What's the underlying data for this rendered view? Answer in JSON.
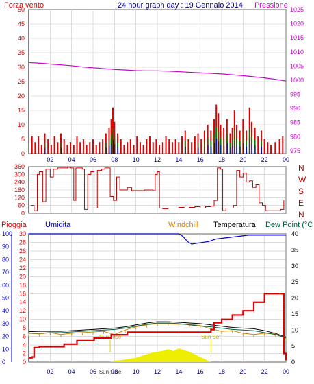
{
  "title": "24 hour graph day : 19 Gennaio 2014",
  "colors": {
    "wind": "#e00000",
    "gust": "#e00000",
    "pressure": "#cc00cc",
    "direction": "#c00000",
    "rain": "#dd0000",
    "humidity": "#0000cc",
    "windchill": "#d08000",
    "temperature": "#000000",
    "dewpoint": "#006040",
    "solar": "#eeee00",
    "grid": "#c8c8c8",
    "axis": "#000080"
  },
  "chart_data": [
    {
      "type": "bar",
      "name": "wind-pressure",
      "series_labels": {
        "wind": "Forza vento",
        "pressure": "Pressione"
      },
      "x_ticks": [
        "02",
        "04",
        "06",
        "08",
        "10",
        "12",
        "14",
        "16",
        "18",
        "20",
        "22",
        "00"
      ],
      "x_tick_hours": [
        2,
        4,
        6,
        8,
        10,
        12,
        14,
        16,
        18,
        20,
        22,
        24
      ],
      "y_left": {
        "ticks": [
          0,
          5,
          10,
          15,
          20,
          25,
          30,
          35,
          40,
          45,
          50
        ],
        "range": [
          0,
          50
        ]
      },
      "y_right": {
        "ticks": [
          975,
          980,
          985,
          990,
          995,
          1000,
          1005,
          1010,
          1015,
          1020,
          1025
        ],
        "range": [
          974,
          1025
        ]
      },
      "wind_bars": [
        [
          0.3,
          6
        ],
        [
          0.6,
          4
        ],
        [
          0.9,
          6
        ],
        [
          1.2,
          3
        ],
        [
          1.5,
          7
        ],
        [
          1.8,
          5
        ],
        [
          2.1,
          3
        ],
        [
          2.4,
          6
        ],
        [
          2.7,
          4
        ],
        [
          3.0,
          7
        ],
        [
          3.3,
          5
        ],
        [
          3.6,
          3
        ],
        [
          3.9,
          4
        ],
        [
          4.2,
          3
        ],
        [
          4.5,
          6
        ],
        [
          4.8,
          4
        ],
        [
          5.1,
          5
        ],
        [
          5.4,
          3
        ],
        [
          5.7,
          4
        ],
        [
          6.0,
          5
        ],
        [
          6.3,
          3
        ],
        [
          6.6,
          4
        ],
        [
          6.9,
          5
        ],
        [
          7.2,
          7
        ],
        [
          7.5,
          9
        ],
        [
          7.7,
          12
        ],
        [
          7.85,
          16
        ],
        [
          8.0,
          11
        ],
        [
          8.3,
          7
        ],
        [
          8.6,
          5
        ],
        [
          8.9,
          3
        ],
        [
          9.2,
          4
        ],
        [
          9.5,
          5
        ],
        [
          9.8,
          3
        ],
        [
          10.1,
          6
        ],
        [
          10.4,
          4
        ],
        [
          10.7,
          3
        ],
        [
          11.0,
          5
        ],
        [
          11.3,
          6
        ],
        [
          11.6,
          4
        ],
        [
          11.9,
          5
        ],
        [
          12.2,
          3
        ],
        [
          12.5,
          4
        ],
        [
          12.8,
          6
        ],
        [
          13.1,
          5
        ],
        [
          13.4,
          4
        ],
        [
          13.7,
          5
        ],
        [
          14.0,
          4
        ],
        [
          14.3,
          6
        ],
        [
          14.6,
          8
        ],
        [
          14.9,
          5
        ],
        [
          15.2,
          4
        ],
        [
          15.5,
          6
        ],
        [
          15.8,
          7
        ],
        [
          16.1,
          5
        ],
        [
          16.4,
          8
        ],
        [
          16.7,
          10
        ],
        [
          17.0,
          8
        ],
        [
          17.3,
          12
        ],
        [
          17.5,
          17
        ],
        [
          17.7,
          14
        ],
        [
          17.9,
          10
        ],
        [
          18.2,
          9
        ],
        [
          18.5,
          12
        ],
        [
          18.8,
          7
        ],
        [
          19.0,
          9
        ],
        [
          19.2,
          15
        ],
        [
          19.4,
          10
        ],
        [
          19.7,
          8
        ],
        [
          20.0,
          12
        ],
        [
          20.3,
          8
        ],
        [
          20.6,
          16
        ],
        [
          20.8,
          11
        ],
        [
          21.1,
          9
        ],
        [
          21.4,
          6
        ],
        [
          21.7,
          8
        ],
        [
          22.0,
          5
        ],
        [
          22.3,
          4
        ],
        [
          22.6,
          3
        ],
        [
          23.0,
          4
        ],
        [
          23.4,
          5
        ],
        [
          23.7,
          6
        ]
      ],
      "pressure_points": [
        [
          0,
          1006.2
        ],
        [
          1,
          1006
        ],
        [
          2,
          1005.7
        ],
        [
          3,
          1005.4
        ],
        [
          4,
          1005.1
        ],
        [
          5,
          1004.7
        ],
        [
          6,
          1004.4
        ],
        [
          7,
          1004.1
        ],
        [
          8,
          1003.8
        ],
        [
          9,
          1003.6
        ],
        [
          10,
          1003.4
        ],
        [
          11,
          1003.3
        ],
        [
          12,
          1003.3
        ],
        [
          13,
          1003.2
        ],
        [
          14,
          1003.0
        ],
        [
          15,
          1002.8
        ],
        [
          16,
          1002.6
        ],
        [
          17,
          1002.4
        ],
        [
          18,
          1002.2
        ],
        [
          19,
          1001.9
        ],
        [
          20,
          1001.6
        ],
        [
          21,
          1001.2
        ],
        [
          22,
          1000.8
        ],
        [
          23,
          1000.3
        ],
        [
          24,
          999.7
        ]
      ]
    },
    {
      "type": "line",
      "name": "wind-direction",
      "y_ticks": [
        0,
        60,
        120,
        180,
        240,
        300,
        360
      ],
      "y_range": [
        0,
        360
      ],
      "compass_labels": [
        "N",
        "W",
        "S",
        "E",
        "N"
      ],
      "points": [
        [
          0.2,
          60
        ],
        [
          0.5,
          20
        ],
        [
          0.8,
          300
        ],
        [
          1.0,
          320
        ],
        [
          1.3,
          90
        ],
        [
          1.6,
          340
        ],
        [
          2.0,
          280
        ],
        [
          2.3,
          340
        ],
        [
          2.7,
          350
        ],
        [
          3.0,
          350
        ],
        [
          3.3,
          350
        ],
        [
          3.6,
          355
        ],
        [
          3.9,
          350
        ],
        [
          4.2,
          100
        ],
        [
          4.4,
          350
        ],
        [
          4.6,
          350
        ],
        [
          5.0,
          340
        ],
        [
          5.2,
          30
        ],
        [
          5.5,
          300
        ],
        [
          5.8,
          320
        ],
        [
          6.1,
          40
        ],
        [
          6.4,
          330
        ],
        [
          6.8,
          340
        ],
        [
          7.1,
          350
        ],
        [
          7.3,
          350
        ],
        [
          7.6,
          130
        ],
        [
          7.9,
          100
        ],
        [
          8.2,
          280
        ],
        [
          8.5,
          180
        ],
        [
          8.9,
          180
        ],
        [
          9.2,
          200
        ],
        [
          9.6,
          175
        ],
        [
          10.0,
          175
        ],
        [
          10.3,
          175
        ],
        [
          10.8,
          180
        ],
        [
          11.2,
          180
        ],
        [
          11.6,
          175
        ],
        [
          11.8,
          300
        ],
        [
          12.0,
          320
        ],
        [
          12.2,
          40
        ],
        [
          12.5,
          35
        ],
        [
          13.0,
          40
        ],
        [
          13.5,
          40
        ],
        [
          14.0,
          45
        ],
        [
          14.5,
          40
        ],
        [
          15.0,
          45
        ],
        [
          15.5,
          50
        ],
        [
          16.0,
          40
        ],
        [
          16.5,
          50
        ],
        [
          17.0,
          55
        ],
        [
          17.3,
          100
        ],
        [
          17.6,
          350
        ],
        [
          17.9,
          340
        ],
        [
          18.1,
          20
        ],
        [
          18.4,
          40
        ],
        [
          18.8,
          40
        ],
        [
          19.1,
          60
        ],
        [
          19.4,
          330
        ],
        [
          19.7,
          280
        ],
        [
          20.0,
          310
        ],
        [
          20.3,
          240
        ],
        [
          20.6,
          250
        ],
        [
          20.9,
          200
        ],
        [
          21.2,
          220
        ],
        [
          21.5,
          80
        ],
        [
          21.8,
          60
        ],
        [
          22.1,
          20
        ],
        [
          22.5,
          20
        ],
        [
          23.0,
          20
        ],
        [
          23.5,
          30
        ],
        [
          23.8,
          100
        ]
      ]
    },
    {
      "type": "line",
      "name": "rain-humidity-temperature",
      "series_labels": {
        "rain": "Pioggia",
        "humidity": "Umidita",
        "windchill": "Windchill",
        "temperature": "Temperatura",
        "dewpoint": "Dew Point (°C"
      },
      "x_ticks": [
        "02",
        "04",
        "06",
        "08",
        "10",
        "12",
        "14",
        "16",
        "18",
        "20",
        "22",
        "00"
      ],
      "x_tick_hours": [
        2,
        4,
        6,
        8,
        10,
        12,
        14,
        16,
        18,
        20,
        22,
        24
      ],
      "annotations": [
        {
          "label": "Sun Rise",
          "hour": 7.6
        },
        {
          "label": "Sun Set",
          "hour": 17.0
        },
        {
          "label": "Sun Rise",
          "hour": 7.6,
          "position": "axis"
        }
      ],
      "y_humidity": {
        "ticks": [
          0,
          10,
          20,
          30,
          40,
          50,
          60,
          70,
          80,
          90,
          100
        ],
        "range": [
          0,
          100
        ]
      },
      "y_rain": {
        "ticks": [
          0,
          2,
          4,
          6,
          8,
          10,
          12,
          14,
          16,
          18,
          20,
          22,
          24,
          26,
          28,
          30
        ],
        "range": [
          0,
          30
        ]
      },
      "y_temp": {
        "ticks": [
          0,
          5,
          10,
          15,
          20,
          25,
          30,
          35,
          40
        ],
        "range": [
          0,
          40
        ]
      },
      "rain": [
        [
          0,
          1.0
        ],
        [
          0.3,
          1.2
        ],
        [
          0.5,
          3.4
        ],
        [
          1.0,
          3.6
        ],
        [
          2.0,
          3.6
        ],
        [
          3.2,
          3.6
        ],
        [
          3.3,
          4.2
        ],
        [
          4.4,
          4.2
        ],
        [
          4.5,
          5.0
        ],
        [
          6.0,
          5.0
        ],
        [
          6.1,
          5.6
        ],
        [
          7.6,
          5.6
        ],
        [
          7.7,
          6.4
        ],
        [
          9.0,
          6.4
        ],
        [
          9.2,
          7.0
        ],
        [
          14.5,
          7.0
        ],
        [
          16.5,
          7.0
        ],
        [
          17.0,
          7.6
        ],
        [
          17.3,
          9.2
        ],
        [
          18.0,
          10.0
        ],
        [
          19.0,
          11.0
        ],
        [
          20.0,
          12.0
        ],
        [
          21.0,
          14.0
        ],
        [
          22.0,
          16.0
        ],
        [
          23.5,
          16.0
        ],
        [
          23.8,
          2.0
        ],
        [
          24,
          0.4
        ]
      ],
      "humidity": [
        [
          0,
          100
        ],
        [
          14.0,
          100
        ],
        [
          14.4,
          98
        ],
        [
          14.8,
          94
        ],
        [
          15.2,
          92
        ],
        [
          16.0,
          93
        ],
        [
          16.8,
          94
        ],
        [
          17.5,
          96
        ],
        [
          18.5,
          97
        ],
        [
          19.5,
          98
        ],
        [
          20.5,
          99
        ],
        [
          22.0,
          99
        ],
        [
          23,
          99
        ],
        [
          24,
          99
        ]
      ],
      "temperature": [
        [
          0,
          9.5
        ],
        [
          1,
          9.6
        ],
        [
          2,
          9.6
        ],
        [
          3,
          9.6
        ],
        [
          4,
          9.8
        ],
        [
          5,
          10.0
        ],
        [
          6,
          10.2
        ],
        [
          7,
          10.4
        ],
        [
          8,
          10.6
        ],
        [
          9,
          11.0
        ],
        [
          10,
          11.6
        ],
        [
          11,
          12.2
        ],
        [
          12,
          12.6
        ],
        [
          13,
          12.6
        ],
        [
          14,
          12.4
        ],
        [
          15,
          12.2
        ],
        [
          16,
          12.0
        ],
        [
          17,
          11.6
        ],
        [
          18,
          11.2
        ],
        [
          19,
          10.8
        ],
        [
          20,
          10.6
        ],
        [
          21,
          10.4
        ],
        [
          22,
          9.8
        ],
        [
          23,
          9.0
        ],
        [
          24,
          7.8
        ]
      ],
      "dewpoint": [
        [
          0,
          9.0
        ],
        [
          1,
          9.0
        ],
        [
          2,
          9.2
        ],
        [
          3,
          9.2
        ],
        [
          4,
          9.4
        ],
        [
          5,
          9.6
        ],
        [
          6,
          9.8
        ],
        [
          7,
          10.0
        ],
        [
          8,
          10.2
        ],
        [
          9,
          10.6
        ],
        [
          10,
          11.2
        ],
        [
          11,
          11.8
        ],
        [
          12,
          12.2
        ],
        [
          13,
          12.2
        ],
        [
          14,
          12.0
        ],
        [
          15,
          11.6
        ],
        [
          16,
          11.2
        ],
        [
          17,
          11.0
        ],
        [
          18,
          10.6
        ],
        [
          19,
          10.2
        ],
        [
          20,
          10.0
        ],
        [
          21,
          9.8
        ],
        [
          22,
          9.2
        ],
        [
          23,
          8.6
        ],
        [
          24,
          7.6
        ]
      ],
      "windchill": [
        [
          0,
          9.0
        ],
        [
          1,
          8.8
        ],
        [
          2,
          9.2
        ],
        [
          3,
          8.6
        ],
        [
          4,
          9.0
        ],
        [
          5,
          9.2
        ],
        [
          6,
          9.4
        ],
        [
          7,
          9.6
        ],
        [
          8,
          8.6
        ],
        [
          9,
          10.0
        ],
        [
          10,
          11.0
        ],
        [
          11,
          11.6
        ],
        [
          12,
          12.0
        ],
        [
          13,
          12.0
        ],
        [
          14,
          11.8
        ],
        [
          15,
          11.8
        ],
        [
          16,
          11.4
        ],
        [
          17,
          10.4
        ],
        [
          18,
          9.6
        ],
        [
          19,
          9.8
        ],
        [
          20,
          9.0
        ],
        [
          21,
          8.6
        ],
        [
          22,
          9.0
        ],
        [
          23,
          8.8
        ],
        [
          24,
          7.4
        ]
      ],
      "solar": [
        [
          7.6,
          0
        ],
        [
          8.0,
          0.3
        ],
        [
          9,
          0.6
        ],
        [
          10,
          1.0
        ],
        [
          10.5,
          1.4
        ],
        [
          11,
          1.8
        ],
        [
          11.5,
          2.2
        ],
        [
          12,
          2.4
        ],
        [
          12.5,
          2.6
        ],
        [
          13,
          3.0
        ],
        [
          13.5,
          2.6
        ],
        [
          14,
          3.2
        ],
        [
          14.5,
          2.8
        ],
        [
          15,
          2.4
        ],
        [
          15.5,
          1.8
        ],
        [
          16,
          1.2
        ],
        [
          16.5,
          0.6
        ],
        [
          17,
          0
        ]
      ]
    }
  ]
}
